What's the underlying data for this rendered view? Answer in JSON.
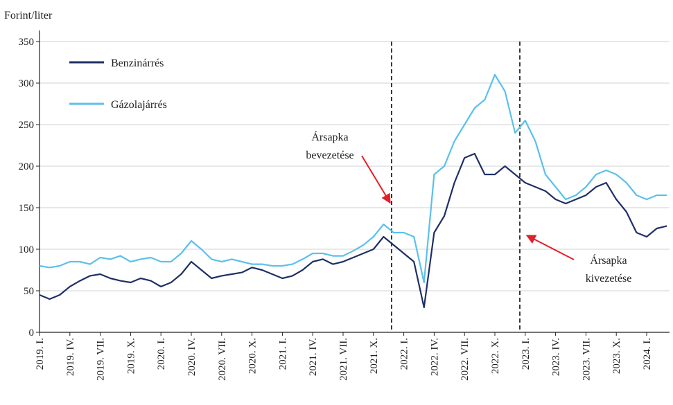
{
  "chart_data": {
    "type": "line",
    "y_axis_label": "Forint/liter",
    "categories": [
      "2019. I.",
      null,
      null,
      "2019. IV.",
      null,
      null,
      "2019. VII.",
      null,
      null,
      "2019. X.",
      null,
      null,
      "2020. I.",
      null,
      null,
      "2020. IV.",
      null,
      null,
      "2020. VII.",
      null,
      null,
      "2020. X.",
      null,
      null,
      "2021. I.",
      null,
      null,
      "2021. IV.",
      null,
      null,
      "2021. VII.",
      null,
      null,
      "2021. X.",
      null,
      null,
      "2022. I.",
      null,
      null,
      "2022. IV.",
      null,
      null,
      "2022. VII.",
      null,
      null,
      "2022. X.",
      null,
      null,
      "2023. I.",
      null,
      null,
      "2023. IV.",
      null,
      null,
      "2023. VII.",
      null,
      null,
      "2023. X.",
      null,
      null,
      "2024. I.",
      null,
      null
    ],
    "series": [
      {
        "name": "Benzinárrés",
        "color": "#1f2f66",
        "values": [
          45,
          40,
          45,
          55,
          62,
          68,
          70,
          65,
          62,
          60,
          65,
          62,
          55,
          60,
          70,
          85,
          75,
          65,
          68,
          70,
          72,
          78,
          75,
          70,
          65,
          68,
          75,
          85,
          88,
          82,
          85,
          90,
          95,
          100,
          115,
          105,
          95,
          85,
          30,
          120,
          140,
          180,
          210,
          215,
          190,
          190,
          200,
          190,
          180,
          175,
          170,
          160,
          155,
          160,
          165,
          175,
          180,
          160,
          145,
          120,
          115,
          125,
          128
        ]
      },
      {
        "name": "Gázolajárrés",
        "color": "#5bc0eb",
        "values": [
          80,
          78,
          80,
          85,
          85,
          82,
          90,
          88,
          92,
          85,
          88,
          90,
          85,
          85,
          95,
          110,
          100,
          88,
          85,
          88,
          85,
          82,
          82,
          80,
          80,
          82,
          88,
          95,
          95,
          92,
          92,
          98,
          105,
          115,
          130,
          120,
          120,
          115,
          60,
          190,
          200,
          230,
          250,
          270,
          280,
          310,
          290,
          240,
          255,
          230,
          190,
          175,
          160,
          165,
          175,
          190,
          195,
          190,
          180,
          165,
          160,
          165,
          165
        ]
      }
    ],
    "ylim": [
      0,
      350
    ],
    "yticks": [
      0,
      50,
      100,
      150,
      200,
      250,
      300,
      350
    ],
    "annotations": [
      {
        "lines": [
          "Ársapka",
          "bevezetése"
        ]
      },
      {
        "lines": [
          "Ársapka",
          "kivezetése"
        ]
      }
    ]
  }
}
